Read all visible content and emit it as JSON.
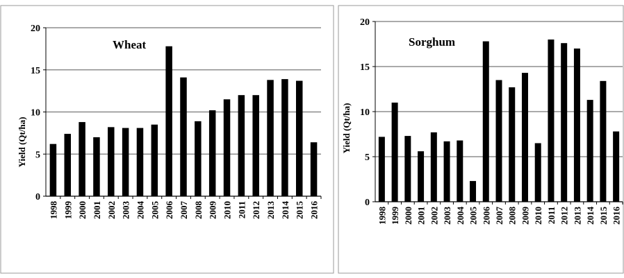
{
  "chart_data": [
    {
      "type": "bar",
      "title": "Wheat",
      "xlabel": "",
      "ylabel": "Yield (Qt/ha)",
      "ylim": [
        0,
        20
      ],
      "yticks": [
        0,
        5,
        10,
        15,
        20
      ],
      "grid": true,
      "categories": [
        "1998",
        "1999",
        "2000",
        "2001",
        "2002",
        "2003",
        "2004",
        "2005",
        "2006",
        "2007",
        "2008",
        "2009",
        "2010",
        "2011",
        "2012",
        "2013",
        "2014",
        "2015",
        "2016"
      ],
      "values": [
        6.2,
        7.4,
        8.8,
        7.0,
        8.2,
        8.1,
        8.1,
        8.5,
        17.8,
        14.1,
        8.9,
        10.2,
        11.5,
        12.0,
        12.0,
        13.8,
        13.9,
        13.7,
        6.4
      ],
      "bar_color": "#000000"
    },
    {
      "type": "bar",
      "title": "Sorghum",
      "xlabel": "",
      "ylabel": "Yield (Qt/ha)",
      "ylim": [
        0,
        20
      ],
      "yticks": [
        0,
        5,
        10,
        15,
        20
      ],
      "grid": true,
      "categories": [
        "1998",
        "1999",
        "2000",
        "2001",
        "2002",
        "2003",
        "2004",
        "2005",
        "2006",
        "2007",
        "2008",
        "2009",
        "2010",
        "2011",
        "2012",
        "2013",
        "2014",
        "2015",
        "2016"
      ],
      "values": [
        7.2,
        11.0,
        7.3,
        5.6,
        7.7,
        6.7,
        6.8,
        2.3,
        17.8,
        13.5,
        12.7,
        14.3,
        6.5,
        18.0,
        17.6,
        17.0,
        11.3,
        13.4,
        7.8
      ],
      "bar_color": "#000000"
    }
  ]
}
